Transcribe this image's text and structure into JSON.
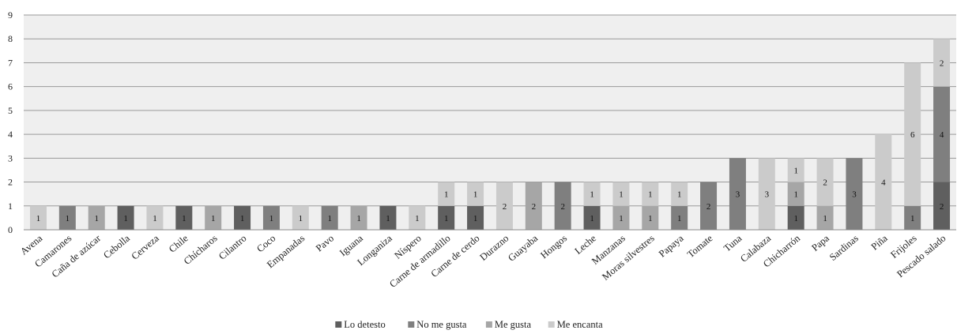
{
  "chart_data": {
    "type": "bar",
    "stacked": true,
    "categories": [
      "Avena",
      "Camarones",
      "Caña de azúcar",
      "Cebolla",
      "Cerveza",
      "Chile",
      "Chícharos",
      "Cilantro",
      "Coco",
      "Empanadas",
      "Pavo",
      "Iguana",
      "Longaniza",
      "Níspero",
      "Carne de armadillo",
      "Carne de cerdo",
      "Durazno",
      "Guayaba",
      "Hongos",
      "Leche",
      "Manzanas",
      "Moras silvestres",
      "Papaya",
      "Tomate",
      "Tuna",
      "Calabaza",
      "Chicharrón",
      "Papa",
      "Sardinas",
      "Piña",
      "Frijoles",
      "Pescado salado"
    ],
    "series": [
      {
        "name": "Lo detesto",
        "color": "#5f5f5f",
        "values": [
          0,
          0,
          0,
          1,
          0,
          1,
          0,
          1,
          0,
          0,
          0,
          0,
          1,
          0,
          1,
          1,
          0,
          0,
          0,
          1,
          0,
          0,
          0,
          0,
          0,
          0,
          1,
          0,
          0,
          0,
          0,
          2
        ]
      },
      {
        "name": "No me gusta",
        "color": "#7f7f7f",
        "values": [
          0,
          1,
          0,
          0,
          0,
          0,
          0,
          0,
          1,
          0,
          1,
          0,
          0,
          0,
          0,
          0,
          0,
          0,
          2,
          0,
          0,
          0,
          1,
          2,
          3,
          0,
          0,
          0,
          3,
          0,
          1,
          4
        ]
      },
      {
        "name": "Me gusta",
        "color": "#a6a6a6",
        "values": [
          0,
          0,
          1,
          0,
          0,
          0,
          1,
          0,
          0,
          0,
          0,
          1,
          0,
          0,
          0,
          0,
          0,
          2,
          0,
          0,
          1,
          1,
          0,
          0,
          0,
          0,
          1,
          1,
          0,
          0,
          0,
          0
        ]
      },
      {
        "name": "Me encanta",
        "color": "#cbcbcb",
        "values": [
          1,
          0,
          0,
          0,
          1,
          0,
          0,
          0,
          0,
          1,
          0,
          0,
          0,
          1,
          1,
          1,
          2,
          0,
          0,
          1,
          1,
          1,
          1,
          0,
          0,
          3,
          1,
          2,
          0,
          4,
          6,
          2
        ]
      }
    ],
    "yticks": [
      "0",
      "1",
      "2",
      "3",
      "4",
      "5",
      "6",
      "7",
      "8",
      "9"
    ],
    "ylim": [
      0,
      9
    ],
    "grid": true,
    "legend_position": "bottom",
    "plot_background": "#efefef",
    "title": "",
    "xlabel": "",
    "ylabel": ""
  }
}
